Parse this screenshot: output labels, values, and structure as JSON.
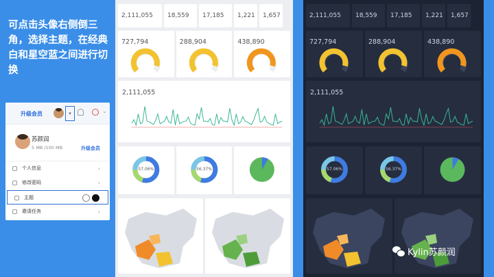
{
  "caption": "可点击头像右侧倒三角，选择主题，在经典白和星空蓝之间进行切换",
  "menu": {
    "upgrade_top": "升级会员",
    "name": "苏颜润",
    "quota": "5 MB /100 MB",
    "upgrade": "升级会员",
    "items": [
      {
        "label": "个人信息"
      },
      {
        "label": "修改密码"
      },
      {
        "label": "主题"
      },
      {
        "label": "邀请任务"
      }
    ]
  },
  "kpis": [
    "2,111,055",
    "18,559",
    "17,185",
    "1,221",
    "1,657"
  ],
  "gauges": [
    "727,794",
    "288,904",
    "438,890"
  ],
  "trend_value": "2,111,055",
  "donuts": [
    "57.06%",
    "56.37%"
  ],
  "colors": {
    "gauge_yellow": "#f2c230",
    "gauge_orange": "#f0961f",
    "line_green": "#3ab795",
    "donut_blue": "#3f7be0",
    "donut_green": "#5bb85c",
    "map_orange": "#f08b2a",
    "map_green": "#66b24e"
  },
  "watermark": "Kylin苏颜润"
}
